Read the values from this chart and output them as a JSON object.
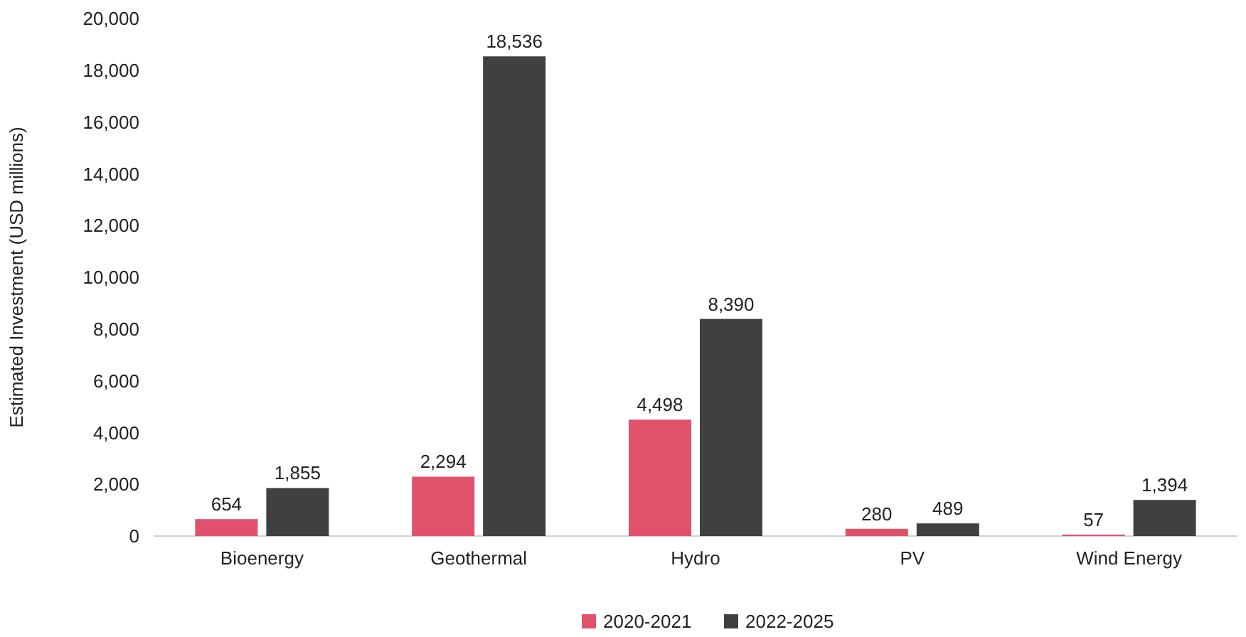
{
  "chart_data": {
    "type": "bar",
    "ylabel": "Estimated Investment (USD millions)",
    "categories": [
      "Bioenergy",
      "Geothermal",
      "Hydro",
      "PV",
      "Wind Energy"
    ],
    "series": [
      {
        "name": "2020-2021",
        "color": "#e0526c",
        "values": [
          654,
          2294,
          4498,
          280,
          57
        ],
        "value_labels": [
          "654",
          "2,294",
          "4,498",
          "280",
          "57"
        ]
      },
      {
        "name": "2022-2025",
        "color": "#404040",
        "values": [
          1855,
          18536,
          8390,
          489,
          1394
        ],
        "value_labels": [
          "1,855",
          "18,536",
          "8,390",
          "489",
          "1,394"
        ]
      }
    ],
    "ylim": [
      0,
      20000
    ],
    "yticks": [
      {
        "value": 0,
        "label": "0"
      },
      {
        "value": 2000,
        "label": "2,000"
      },
      {
        "value": 4000,
        "label": "4,000"
      },
      {
        "value": 6000,
        "label": "6,000"
      },
      {
        "value": 8000,
        "label": "8,000"
      },
      {
        "value": 10000,
        "label": "10,000"
      },
      {
        "value": 12000,
        "label": "12,000"
      },
      {
        "value": 14000,
        "label": "14,000"
      },
      {
        "value": 16000,
        "label": "16,000"
      },
      {
        "value": 18000,
        "label": "18,000"
      },
      {
        "value": 20000,
        "label": "20,000"
      }
    ],
    "grid": false,
    "legend": "bottom"
  }
}
